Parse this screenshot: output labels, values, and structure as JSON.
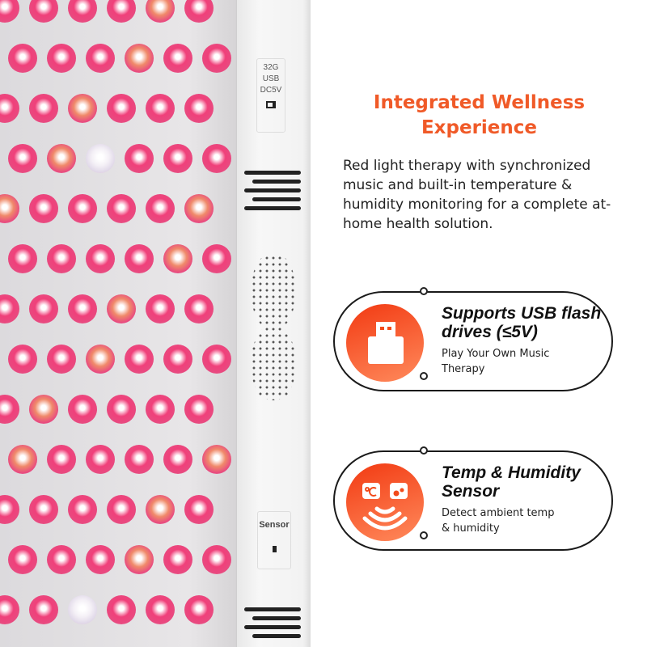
{
  "device": {
    "usb_port_labels": [
      "32G",
      "USB",
      "DC5V"
    ],
    "sensor_label": "Sensor"
  },
  "headline": "Integrated Wellness Experience",
  "description": "Red light therapy with synchronized music and built-in temperature & humidity monitoring for a complete at-home health solution.",
  "features": [
    {
      "icon": "usb-drive-icon",
      "title": "Supports USB flash drives (≤5V)",
      "subtitle": "Play Your Own Music Therapy"
    },
    {
      "icon": "temp-humidity-sensor-icon",
      "title": "Temp & Humidity Sensor",
      "subtitle": "Detect ambient temp & humidity"
    }
  ],
  "colors": {
    "accent": "#f05a28",
    "led_red": "#f0407a",
    "led_amber": "#f08a6a"
  }
}
